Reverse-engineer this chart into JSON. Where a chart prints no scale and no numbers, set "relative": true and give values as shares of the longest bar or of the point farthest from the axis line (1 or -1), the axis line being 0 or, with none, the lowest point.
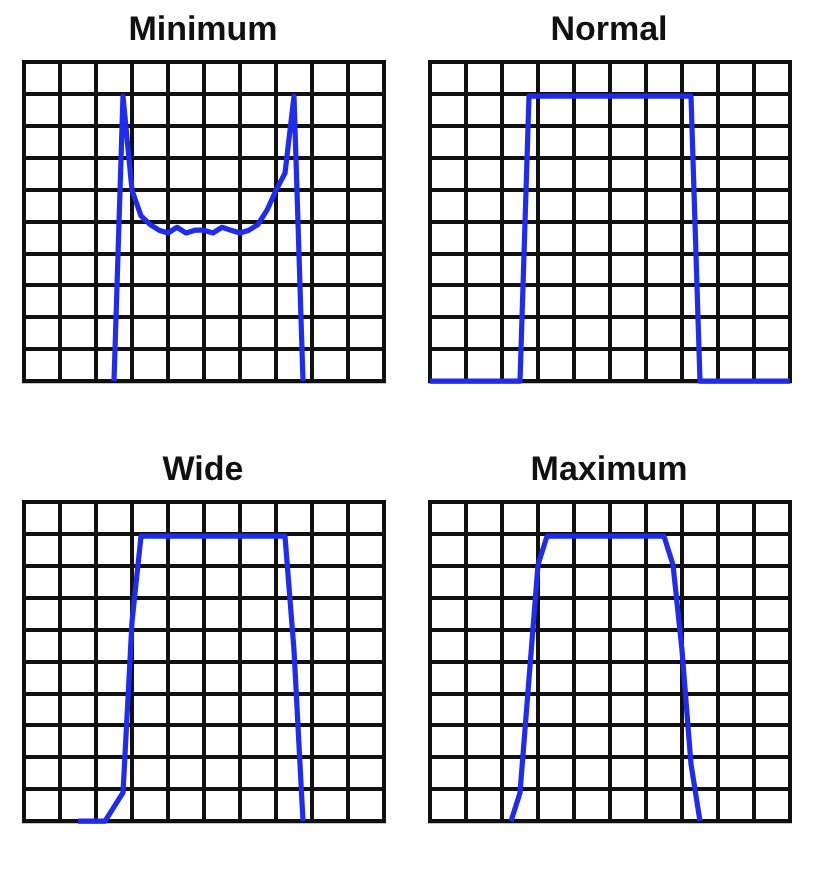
{
  "chart_data": [
    {
      "type": "line",
      "title": "Minimum",
      "relative": true,
      "grid": true,
      "legend": false,
      "marker": "none",
      "categories": [
        null,
        null,
        null,
        null,
        null,
        null,
        null,
        null,
        null,
        null,
        null,
        null,
        null,
        null,
        null,
        null,
        null,
        null,
        null,
        null,
        null,
        null,
        null,
        null,
        null,
        null,
        null,
        null,
        null,
        null,
        null,
        null,
        null,
        null,
        null,
        null,
        null,
        null,
        null,
        null,
        null
      ],
      "series": [
        {
          "color": "#1f2cf0",
          "values": [
            null,
            null,
            null,
            null,
            null,
            null,
            null,
            null,
            null,
            null,
            0,
            1,
            0.67,
            0.58,
            0.55,
            0.53,
            0.52,
            0.54,
            0.52,
            0.53,
            0.53,
            0.52,
            0.54,
            0.53,
            0.52,
            0.53,
            0.55,
            0.6,
            0.67,
            0.73,
            1,
            0,
            null,
            null,
            null,
            null,
            null,
            null,
            null,
            null,
            null
          ]
        }
      ]
    },
    {
      "type": "line",
      "title": "Normal",
      "relative": true,
      "grid": true,
      "legend": false,
      "marker": "none",
      "categories": [
        null,
        null,
        null,
        null,
        null,
        null,
        null,
        null,
        null,
        null,
        null,
        null,
        null,
        null,
        null,
        null,
        null,
        null,
        null,
        null,
        null,
        null,
        null,
        null,
        null,
        null,
        null,
        null,
        null,
        null,
        null,
        null,
        null,
        null,
        null,
        null,
        null,
        null,
        null,
        null,
        null
      ],
      "series": [
        {
          "color": "#1f2cf0",
          "values": [
            0,
            0,
            0,
            0,
            0,
            0,
            0,
            0,
            0,
            0,
            0,
            1,
            1,
            1,
            1,
            1,
            1,
            1,
            1,
            1,
            1,
            1,
            1,
            1,
            1,
            1,
            1,
            1,
            1,
            1,
            0,
            0,
            0,
            0,
            0,
            0,
            0,
            0,
            0,
            0,
            0
          ]
        }
      ]
    },
    {
      "type": "line",
      "title": "Wide",
      "relative": true,
      "grid": true,
      "legend": false,
      "marker": "none",
      "categories": [
        null,
        null,
        null,
        null,
        null,
        null,
        null,
        null,
        null,
        null,
        null,
        null,
        null,
        null,
        null,
        null,
        null,
        null,
        null,
        null,
        null,
        null,
        null,
        null,
        null,
        null,
        null,
        null,
        null,
        null,
        null,
        null,
        null,
        null,
        null,
        null,
        null,
        null,
        null,
        null,
        null
      ],
      "series": [
        {
          "color": "#1f2cf0",
          "values": [
            null,
            null,
            null,
            null,
            null,
            null,
            0,
            0,
            0,
            0,
            0.05,
            0.1,
            0.7,
            1,
            1,
            1,
            1,
            1,
            1,
            1,
            1,
            1,
            1,
            1,
            1,
            1,
            1,
            1,
            1,
            1,
            0.6,
            0,
            null,
            null,
            null,
            null,
            null,
            null,
            null,
            null,
            null
          ]
        }
      ]
    },
    {
      "type": "line",
      "title": "Maximum",
      "relative": true,
      "grid": true,
      "legend": false,
      "marker": "none",
      "categories": [
        null,
        null,
        null,
        null,
        null,
        null,
        null,
        null,
        null,
        null,
        null,
        null,
        null,
        null,
        null,
        null,
        null,
        null,
        null,
        null,
        null,
        null,
        null,
        null,
        null,
        null,
        null,
        null,
        null,
        null,
        null,
        null,
        null,
        null,
        null,
        null,
        null,
        null,
        null,
        null,
        null
      ],
      "series": [
        {
          "color": "#1f2cf0",
          "values": [
            null,
            null,
            null,
            null,
            null,
            null,
            null,
            null,
            null,
            0,
            0.1,
            0.5,
            0.9,
            1,
            1,
            1,
            1,
            1,
            1,
            1,
            1,
            1,
            1,
            1,
            1,
            1,
            1,
            0.9,
            0.6,
            0.2,
            0,
            null,
            null,
            null,
            null,
            null,
            null,
            null,
            null,
            null,
            null
          ]
        }
      ]
    }
  ]
}
